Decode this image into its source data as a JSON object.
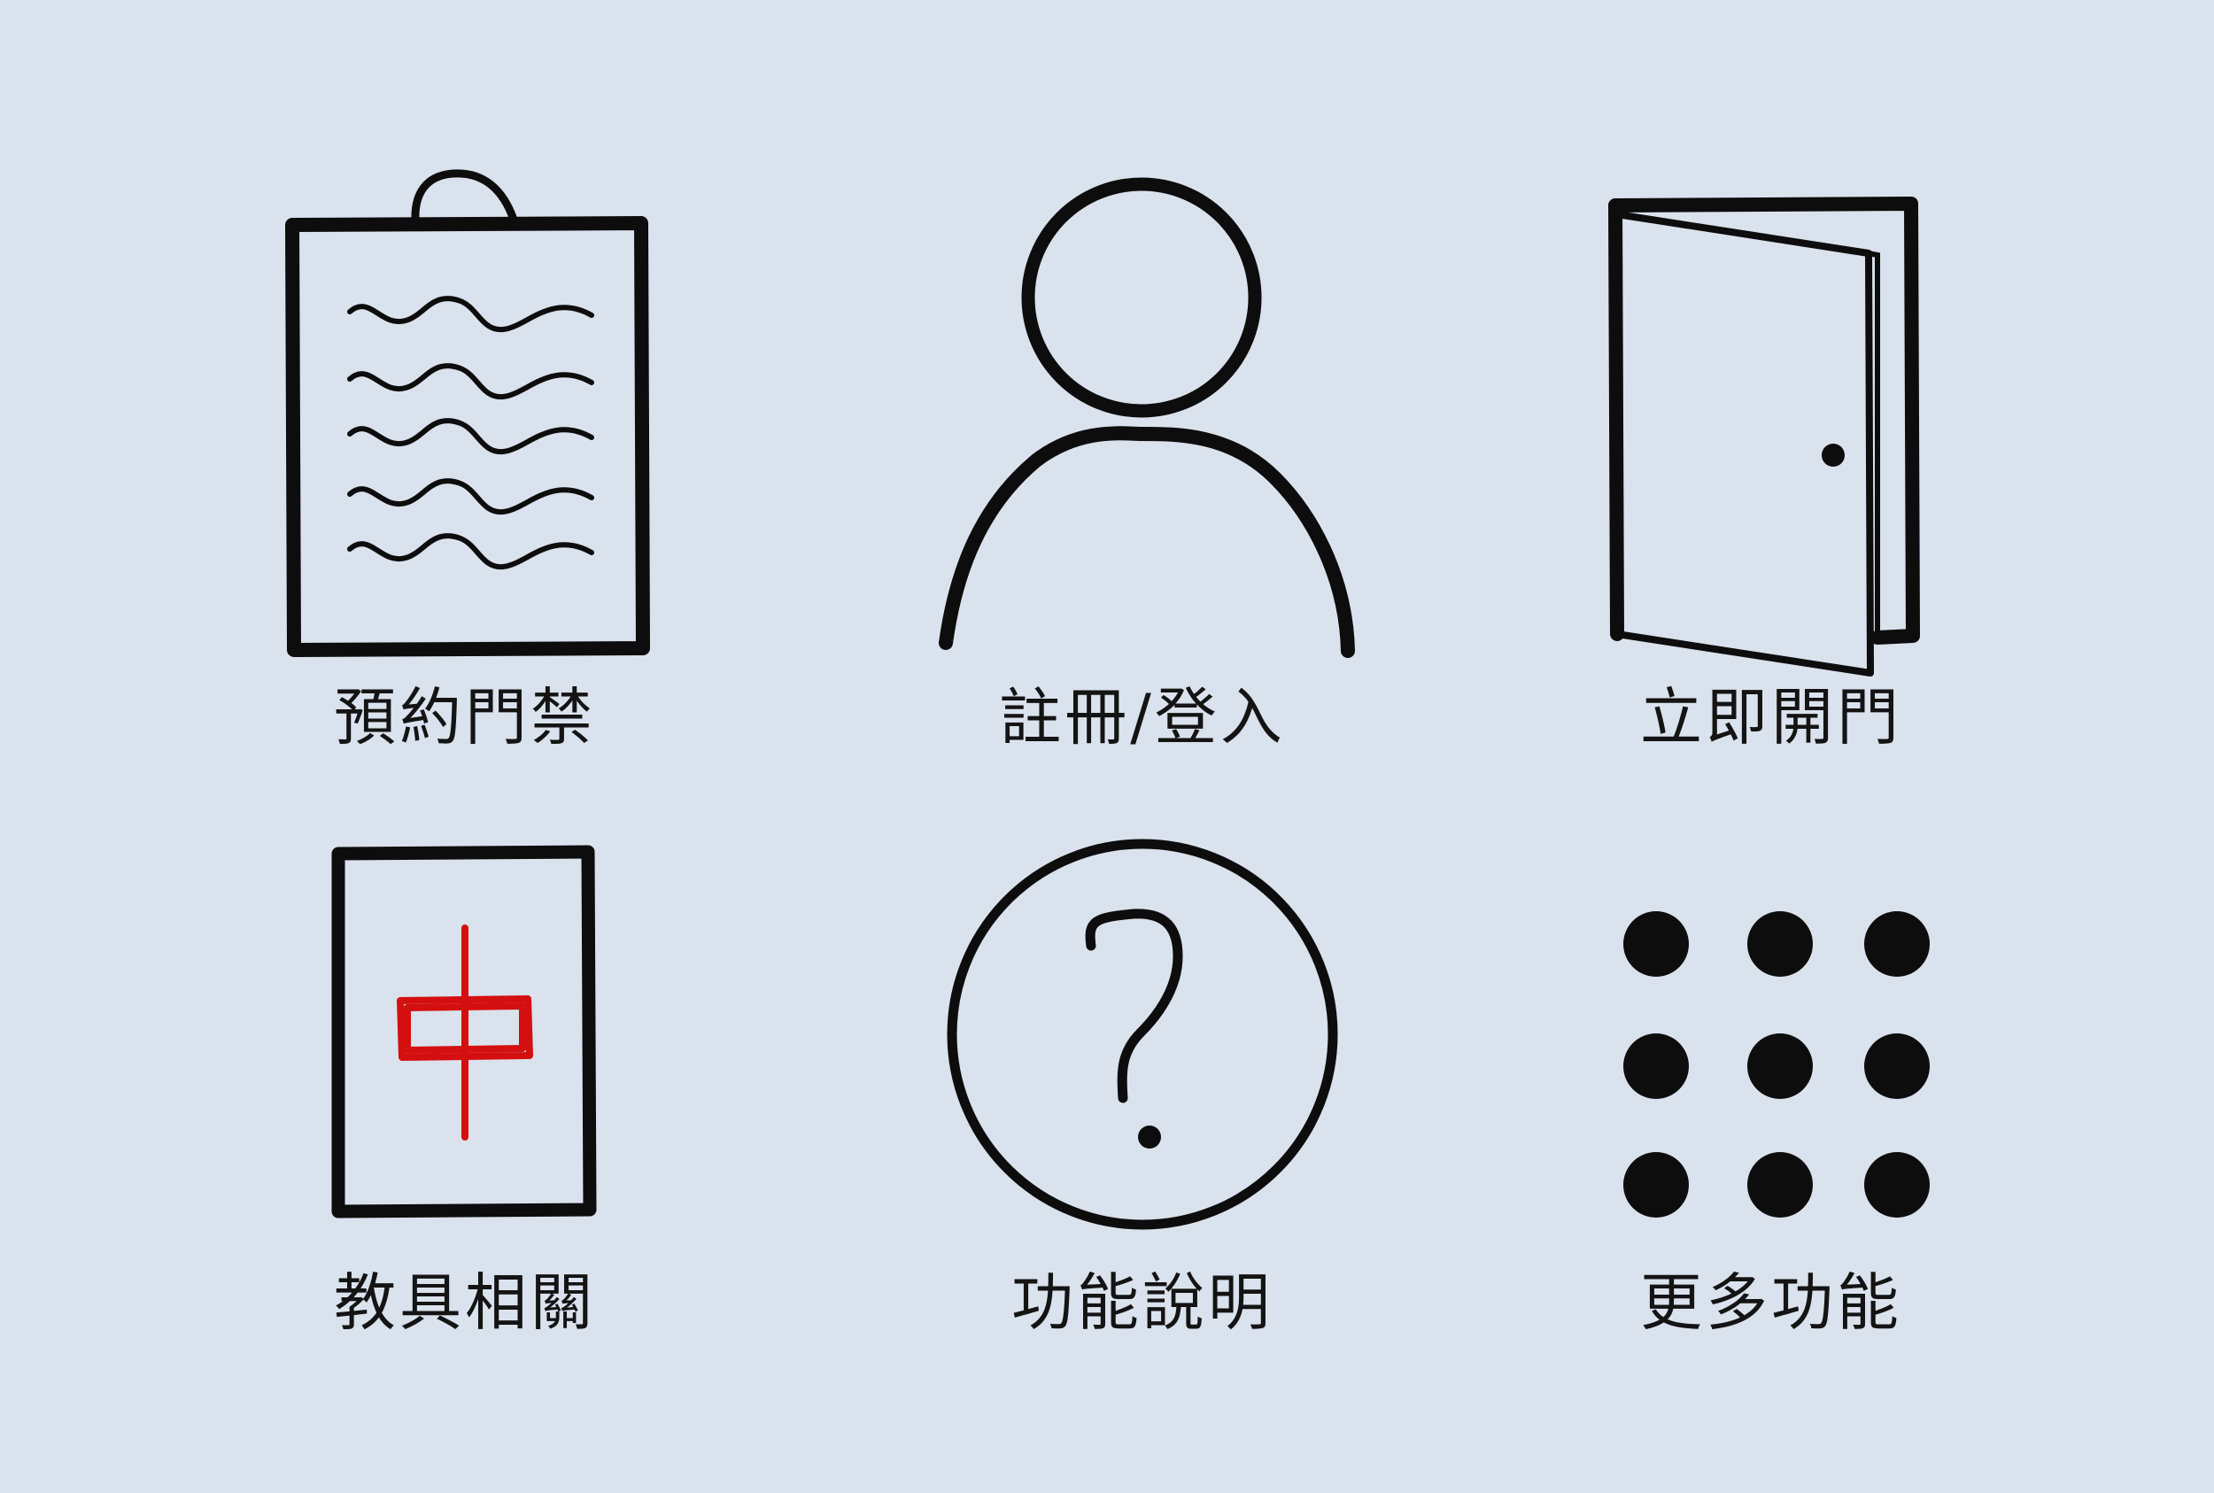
{
  "colors": {
    "background": "#dae2ed",
    "ink": "#0d0d0d",
    "label": "#141414",
    "accent_red": "#d40f0f"
  },
  "menu": {
    "items": [
      {
        "id": "booking",
        "label": "預約門禁",
        "icon": "clipboard-icon"
      },
      {
        "id": "account",
        "label": "註冊/登入",
        "icon": "user-icon"
      },
      {
        "id": "open-door",
        "label": "立即開門",
        "icon": "door-icon"
      },
      {
        "id": "equipment",
        "label": "教具相關",
        "icon": "hongzhong-tile-icon"
      },
      {
        "id": "help",
        "label": "功能說明",
        "icon": "question-icon"
      },
      {
        "id": "more",
        "label": "更多功能",
        "icon": "grid-dots-icon"
      }
    ]
  }
}
